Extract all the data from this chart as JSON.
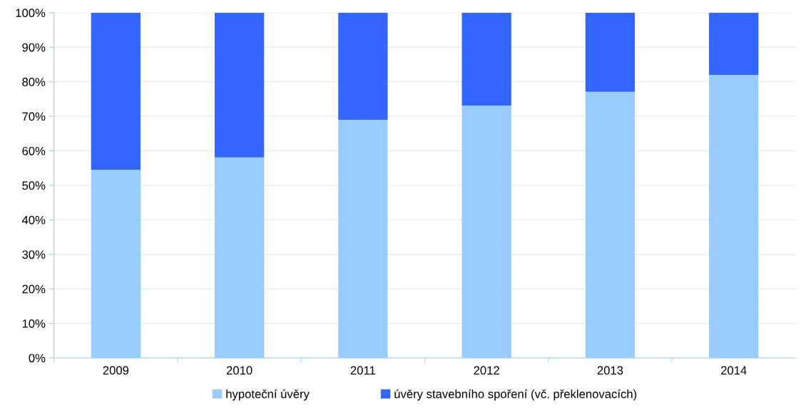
{
  "chart_data": {
    "type": "bar",
    "stacked": true,
    "categories": [
      "2009",
      "2010",
      "2011",
      "2012",
      "2013",
      "2014"
    ],
    "series": [
      {
        "name": "hypoteční úvěry",
        "color": "#99ccff",
        "values": [
          54.5,
          58.1,
          69.0,
          73.1,
          77.1,
          82.0
        ]
      },
      {
        "name": "úvěry stavebního spoření (vč. překlenovacích)",
        "color": "#3366ff",
        "values": [
          45.5,
          41.9,
          31.0,
          26.9,
          22.9,
          18.0
        ]
      }
    ],
    "ylim": [
      0,
      100
    ],
    "yticks": [
      {
        "value": 0,
        "label": "0%"
      },
      {
        "value": 10,
        "label": "10%"
      },
      {
        "value": 20,
        "label": "20%"
      },
      {
        "value": 30,
        "label": "30%"
      },
      {
        "value": 40,
        "label": "40%"
      },
      {
        "value": 50,
        "label": "50%"
      },
      {
        "value": 60,
        "label": "60%"
      },
      {
        "value": 70,
        "label": "70%"
      },
      {
        "value": 80,
        "label": "80%"
      },
      {
        "value": 90,
        "label": "90%"
      },
      {
        "value": 100,
        "label": "100%"
      }
    ],
    "grid": "y",
    "legend": "bottom"
  }
}
